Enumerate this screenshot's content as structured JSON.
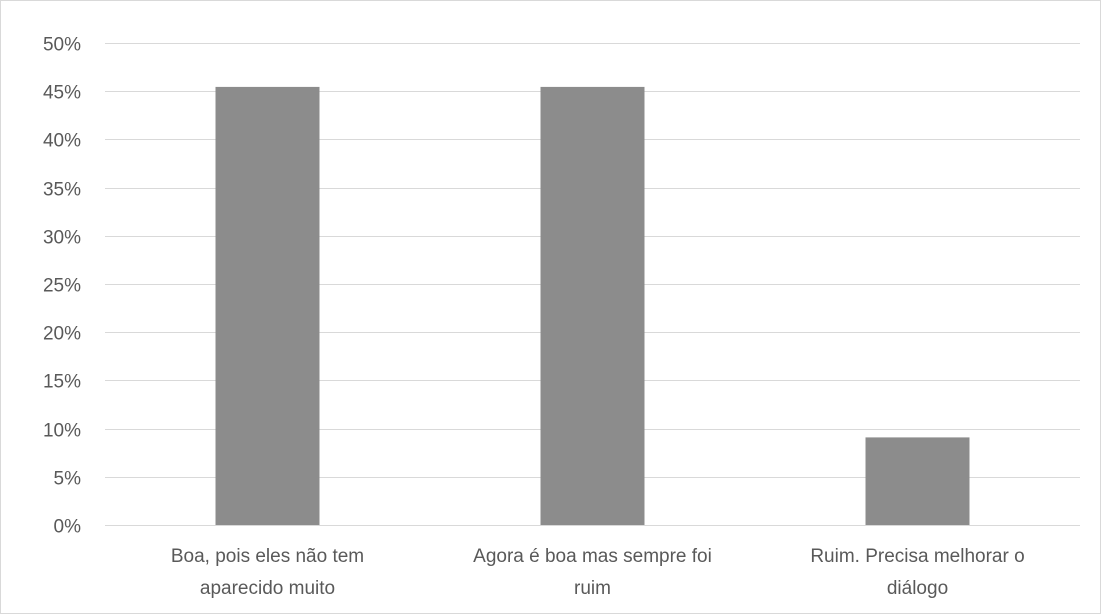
{
  "chart_data": {
    "type": "bar",
    "categories": [
      [
        "Boa, pois eles não tem",
        "aparecido muito"
      ],
      [
        "Agora é boa mas sempre foi",
        "ruim"
      ],
      [
        "Ruim. Precisa melhorar o",
        "diálogo"
      ]
    ],
    "values": [
      45.45,
      45.45,
      9.09
    ],
    "ylim": [
      0,
      50
    ],
    "yticks": [
      "0%",
      "5%",
      "10%",
      "15%",
      "20%",
      "25%",
      "30%",
      "35%",
      "40%",
      "45%",
      "50%"
    ],
    "title": "",
    "xlabel": "",
    "ylabel": "",
    "grid": true,
    "legend": "none",
    "bar_color": "#8c8c8c",
    "grid_color": "#d9d9d9",
    "text_color": "#595959"
  }
}
